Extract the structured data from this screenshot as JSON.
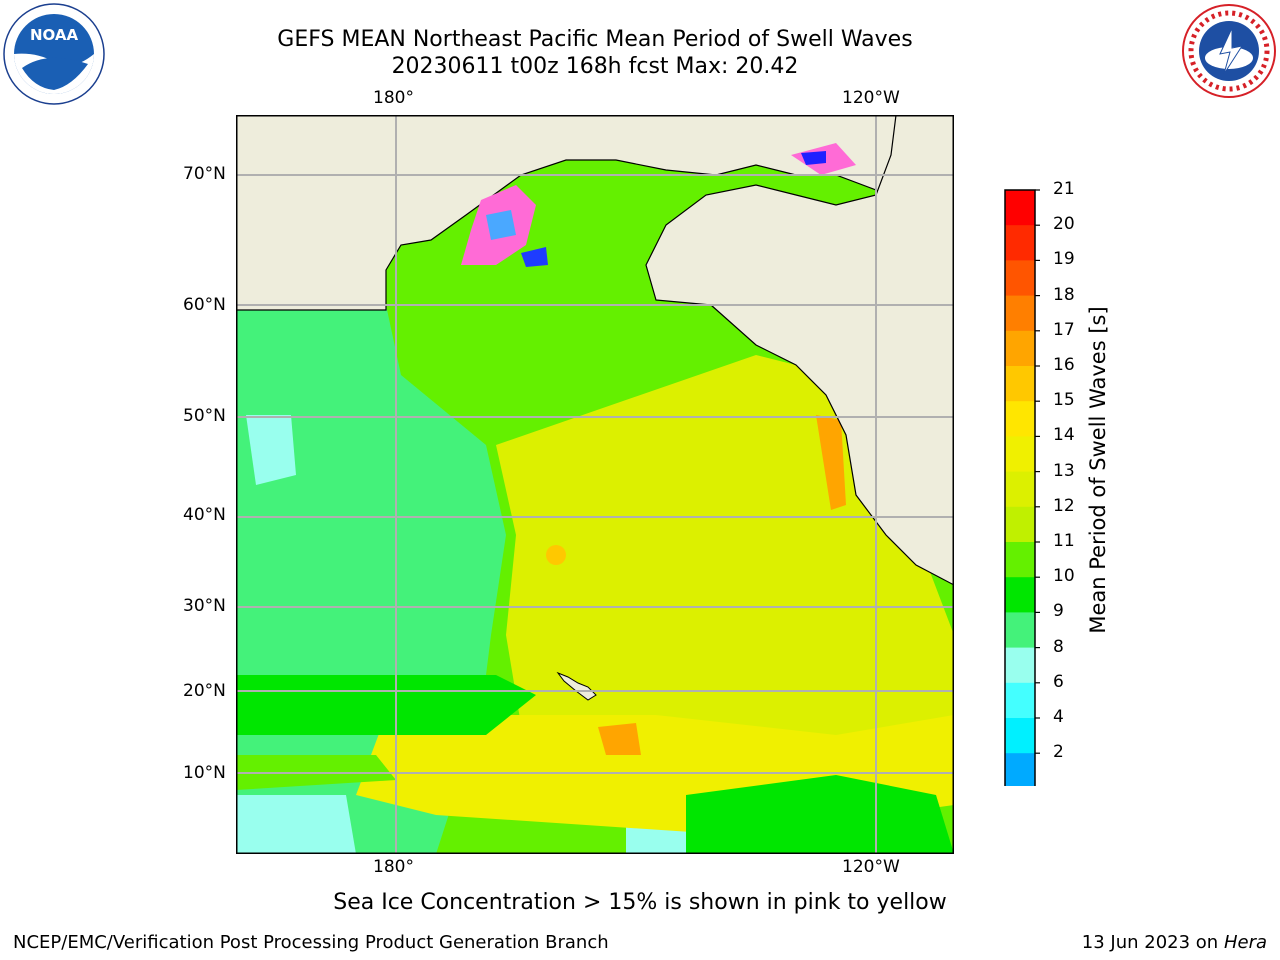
{
  "title": {
    "line1": "GEFS MEAN Northeast Pacific Mean Period of Swell Waves",
    "line2": "20230611 t00z 168h fcst   Max: 20.42"
  },
  "map": {
    "top_lon_labels": [
      "180°",
      "120°W"
    ],
    "bottom_lon_labels": [
      "180°",
      "120°W"
    ],
    "lat_labels": [
      "70°N",
      "60°N",
      "50°N",
      "40°N",
      "30°N",
      "20°N",
      "10°N"
    ]
  },
  "colorbar": {
    "title": "Mean Period of Swell Waves [s]",
    "ticks": [
      "21",
      "20",
      "19",
      "18",
      "17",
      "16",
      "15",
      "14",
      "13",
      "12",
      "11",
      "10",
      "9",
      "8",
      "6",
      "4",
      "2"
    ],
    "colors": [
      "#ff0000",
      "#ff2a00",
      "#ff5500",
      "#ff7f00",
      "#ffa500",
      "#ffc800",
      "#ffe600",
      "#f0f000",
      "#dcf000",
      "#c0f000",
      "#64f000",
      "#00e600",
      "#44f27a",
      "#99ffee",
      "#44ffff",
      "#00f0ff",
      "#00aaff",
      "#0070ff"
    ],
    "extend_color": "#0000ff"
  },
  "note": "Sea Ice Concentration > 15% is shown in pink to yellow",
  "footer": {
    "left": "NCEP/EMC/Verification Post Processing Product Generation Branch",
    "date": "13 Jun 2023 on",
    "machine": "Hera"
  },
  "logos": {
    "left": "noaa-logo",
    "right": "national-weather-service-logo",
    "nws_text": "NATIONAL WEATHER SERVICE"
  }
}
